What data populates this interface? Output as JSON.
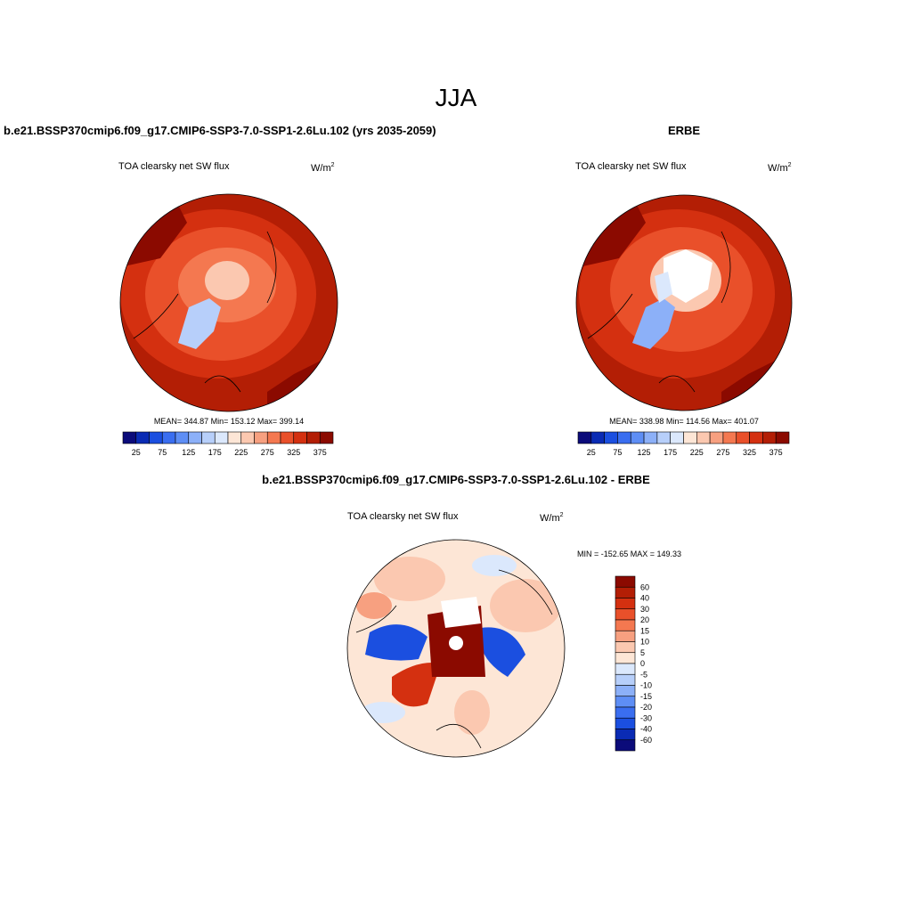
{
  "title": "JJA",
  "panels": [
    {
      "heading": "b.e21.BSSP370cmip6.f09_g17.CMIP6-SSP3-7.0-SSP1-2.6Lu.102 (yrs 2035-2059)",
      "subtitle": "TOA clearsky net SW flux",
      "units": {
        "base": "W/m",
        "sup": "2"
      },
      "stats": "MEAN= 344.87  Min= 153.12  Max= 399.14",
      "colorbar": {
        "labels": [
          25,
          75,
          125,
          175,
          225,
          275,
          325,
          375
        ],
        "colors": [
          "#0b0b7a",
          "#0a2bb4",
          "#1b4fe0",
          "#3a6ef0",
          "#5e8ef5",
          "#8cb0f8",
          "#b7cffa",
          "#dbe8fc",
          "#fde6d6",
          "#fbc8b0",
          "#f7a080",
          "#f47850",
          "#e9502a",
          "#d43010",
          "#b31e05",
          "#8b0a00"
        ]
      }
    },
    {
      "heading": "ERBE",
      "subtitle": "TOA clearsky net SW flux",
      "units": {
        "base": "W/m",
        "sup": "2"
      },
      "stats": "MEAN= 338.98  Min= 114.56  Max= 401.07",
      "colorbar": {
        "labels": [
          25,
          75,
          125,
          175,
          225,
          275,
          325,
          375
        ],
        "colors": [
          "#0b0b7a",
          "#0a2bb4",
          "#1b4fe0",
          "#3a6ef0",
          "#5e8ef5",
          "#8cb0f8",
          "#b7cffa",
          "#dbe8fc",
          "#fde6d6",
          "#fbc8b0",
          "#f7a080",
          "#f47850",
          "#e9502a",
          "#d43010",
          "#b31e05",
          "#8b0a00"
        ]
      }
    }
  ],
  "difference": {
    "heading": "b.e21.BSSP370cmip6.f09_g17.CMIP6-SSP3-7.0-SSP1-2.6Lu.102 - ERBE",
    "subtitle": "TOA clearsky net SW flux",
    "units": {
      "base": "W/m",
      "sup": "2"
    },
    "stats": "MIN = -152.65 MAX = 149.33",
    "colorbar": {
      "labels": [
        60,
        40,
        30,
        20,
        15,
        10,
        5,
        0,
        -5,
        -10,
        -15,
        -20,
        -30,
        -40,
        -60
      ],
      "colors": [
        "#8b0a00",
        "#b31e05",
        "#d43010",
        "#e9502a",
        "#f47850",
        "#f7a080",
        "#fbc8b0",
        "#fde6d6",
        "#dbe8fc",
        "#b7cffa",
        "#8cb0f8",
        "#5e8ef5",
        "#3a6ef0",
        "#1b4fe0",
        "#0a2bb4",
        "#0b0b7a"
      ]
    }
  }
}
